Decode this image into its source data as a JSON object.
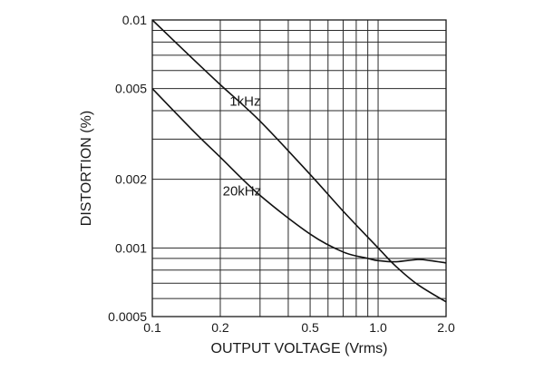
{
  "chart_data": {
    "type": "line",
    "xlabel": "OUTPUT VOLTAGE (Vrms)",
    "ylabel": "DISTORTION (%)",
    "x_scale": "log",
    "y_scale": "log",
    "xlim": [
      0.1,
      2.0
    ],
    "ylim": [
      0.0005,
      0.01
    ],
    "x_ticks": [
      {
        "value": 0.1,
        "label": "0.1"
      },
      {
        "value": 0.2,
        "label": "0.2"
      },
      {
        "value": 0.5,
        "label": "0.5"
      },
      {
        "value": 1.0,
        "label": "1.0"
      },
      {
        "value": 2.0,
        "label": "2.0"
      }
    ],
    "y_ticks": [
      {
        "value": 0.01,
        "label": "0.01"
      },
      {
        "value": 0.005,
        "label": "0.005"
      },
      {
        "value": 0.002,
        "label": "0.002"
      },
      {
        "value": 0.001,
        "label": "0.001"
      },
      {
        "value": 0.0005,
        "label": "0.0005"
      }
    ],
    "x_grid": [
      0.1,
      0.2,
      0.3,
      0.4,
      0.5,
      0.6,
      0.7,
      0.8,
      0.9,
      1.0,
      2.0
    ],
    "y_grid": [
      0.0005,
      0.0006,
      0.0007,
      0.0008,
      0.0009,
      0.001,
      0.002,
      0.003,
      0.004,
      0.005,
      0.006,
      0.007,
      0.008,
      0.009,
      0.01
    ],
    "grid": true,
    "series": [
      {
        "name": "1kHz",
        "x": [
          0.1,
          0.15,
          0.2,
          0.3,
          0.5,
          0.7,
          1.0,
          1.2,
          1.5,
          2.0
        ],
        "y": [
          0.01,
          0.0068,
          0.0052,
          0.0036,
          0.0021,
          0.00145,
          0.001,
          0.00083,
          0.00069,
          0.00058
        ]
      },
      {
        "name": "20kHz",
        "x": [
          0.1,
          0.15,
          0.2,
          0.3,
          0.5,
          0.7,
          0.9,
          1.0,
          1.2,
          1.5,
          1.7,
          2.0
        ],
        "y": [
          0.005,
          0.0033,
          0.0025,
          0.0017,
          0.00115,
          0.00096,
          0.0009,
          0.00088,
          0.00087,
          0.00089,
          0.00088,
          0.00086
        ]
      }
    ]
  }
}
